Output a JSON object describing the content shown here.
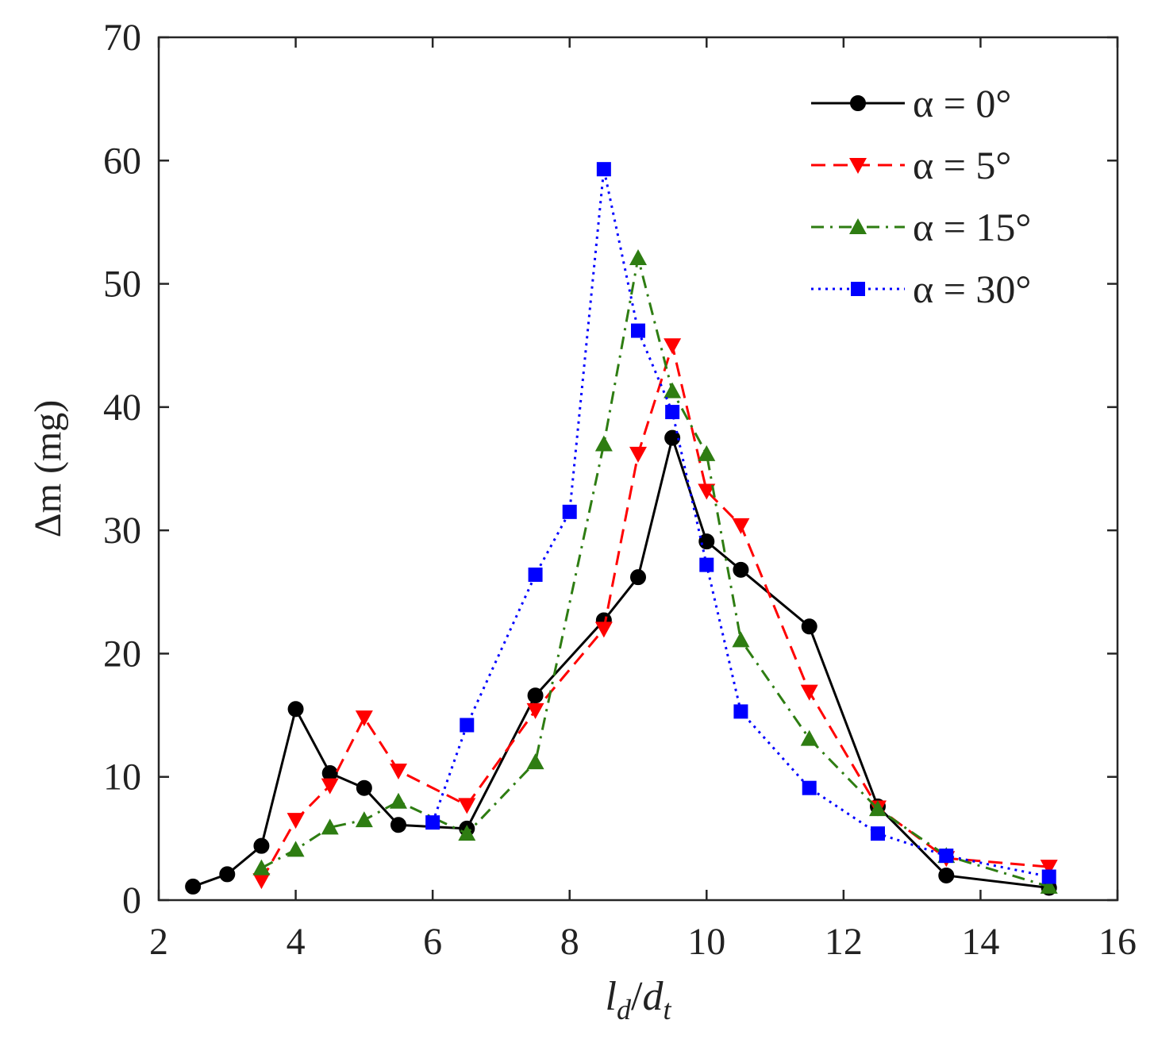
{
  "chart_data": {
    "type": "line",
    "title": "",
    "xlabel": "l_d/d_t",
    "ylabel": "Δm (mg)",
    "xlim": [
      2,
      16
    ],
    "ylim": [
      0,
      70
    ],
    "xticks": [
      2,
      4,
      6,
      8,
      10,
      12,
      14,
      16
    ],
    "yticks": [
      0,
      10,
      20,
      30,
      40,
      50,
      60,
      70
    ],
    "xtick_labels": [
      "2",
      "4",
      "6",
      "8",
      "10",
      "12",
      "14",
      "16"
    ],
    "ytick_labels": [
      "0",
      "10",
      "20",
      "30",
      "40",
      "50",
      "60",
      "70"
    ],
    "grid": false,
    "legend_position": "top-right",
    "series": [
      {
        "name": "α = 0°",
        "color": "#000000",
        "line_style": "solid",
        "marker": "circle",
        "x": [
          2.5,
          3.0,
          3.5,
          4.0,
          4.5,
          5.0,
          5.5,
          6.5,
          7.5,
          8.5,
          9.0,
          9.5,
          10.0,
          10.5,
          11.5,
          12.5,
          13.5,
          15.0
        ],
        "y": [
          1.1,
          2.1,
          4.4,
          15.5,
          10.3,
          9.1,
          6.1,
          5.8,
          16.6,
          22.7,
          26.2,
          37.5,
          29.1,
          26.8,
          22.2,
          7.6,
          2.0,
          1.0
        ]
      },
      {
        "name": "α = 5°",
        "color": "#ff0000",
        "line_style": "dashed",
        "marker": "triangle-down",
        "x": [
          3.5,
          4.0,
          4.5,
          5.0,
          5.5,
          6.5,
          7.5,
          8.5,
          9.0,
          9.5,
          10.0,
          10.5,
          11.5,
          12.5,
          13.5,
          15.0
        ],
        "y": [
          1.6,
          6.5,
          9.3,
          14.8,
          10.5,
          7.7,
          15.4,
          22.0,
          36.2,
          45.0,
          33.2,
          30.4,
          16.9,
          7.5,
          3.4,
          2.7
        ]
      },
      {
        "name": "α = 15°",
        "color": "#2e7d12",
        "line_style": "dashdot",
        "marker": "triangle-up",
        "x": [
          3.5,
          4.0,
          4.5,
          5.0,
          5.5,
          6.5,
          7.5,
          8.5,
          9.0,
          9.5,
          10.0,
          10.5,
          11.5,
          12.5,
          13.5,
          15.0
        ],
        "y": [
          2.6,
          4.1,
          5.9,
          6.5,
          8.0,
          5.4,
          11.2,
          37.0,
          52.1,
          41.3,
          36.2,
          21.1,
          13.1,
          7.4,
          3.6,
          1.1
        ]
      },
      {
        "name": "α = 30°",
        "color": "#0000ff",
        "line_style": "dotted",
        "marker": "square",
        "x": [
          6.0,
          6.5,
          7.5,
          8.0,
          8.5,
          9.0,
          9.5,
          10.0,
          10.5,
          11.5,
          12.5,
          13.5,
          15.0
        ],
        "y": [
          6.3,
          14.2,
          26.4,
          31.5,
          59.3,
          46.2,
          39.6,
          27.2,
          15.3,
          9.1,
          5.4,
          3.6,
          1.9
        ]
      }
    ]
  }
}
